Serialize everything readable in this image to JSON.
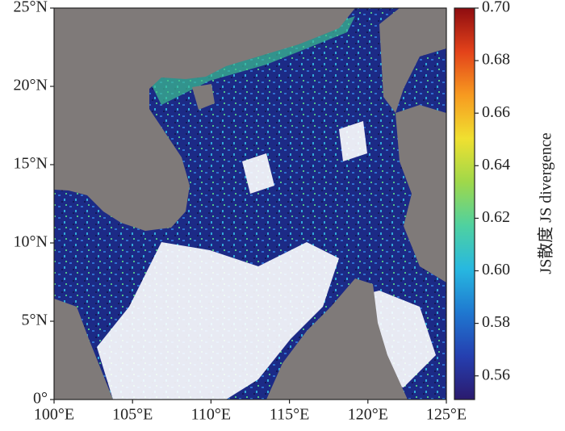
{
  "chart_data": {
    "type": "map",
    "xlim": [
      100,
      125
    ],
    "ylim": [
      0,
      25
    ],
    "xticks": [
      {
        "value": 100,
        "label": "100°E"
      },
      {
        "value": 105,
        "label": "105°E"
      },
      {
        "value": 110,
        "label": "110°E"
      },
      {
        "value": 115,
        "label": "115°E"
      },
      {
        "value": 120,
        "label": "120°E"
      },
      {
        "value": 125,
        "label": "125°E"
      }
    ],
    "yticks": [
      {
        "value": 0,
        "label": "0°"
      },
      {
        "value": 5,
        "label": "5°N"
      },
      {
        "value": 10,
        "label": "10°N"
      },
      {
        "value": 15,
        "label": "15°N"
      },
      {
        "value": 20,
        "label": "20°N"
      },
      {
        "value": 25,
        "label": "25°N"
      }
    ],
    "colorbar": {
      "label": "JS散度 JS divergence",
      "lim": [
        0.551,
        0.7
      ],
      "ticks": [
        0.56,
        0.58,
        {
          "value": 0.6,
          "label": "0.60"
        },
        0.62,
        0.64,
        0.66,
        0.68,
        {
          "value": 0.7,
          "label": "0.70"
        }
      ],
      "colormap": [
        "#2b1a6e",
        "#253fb0",
        "#1f78d0",
        "#27b8e0",
        "#4fd1a0",
        "#9fd84a",
        "#f0e030",
        "#f79a20",
        "#e3421a",
        "#8e0c10"
      ]
    }
  }
}
